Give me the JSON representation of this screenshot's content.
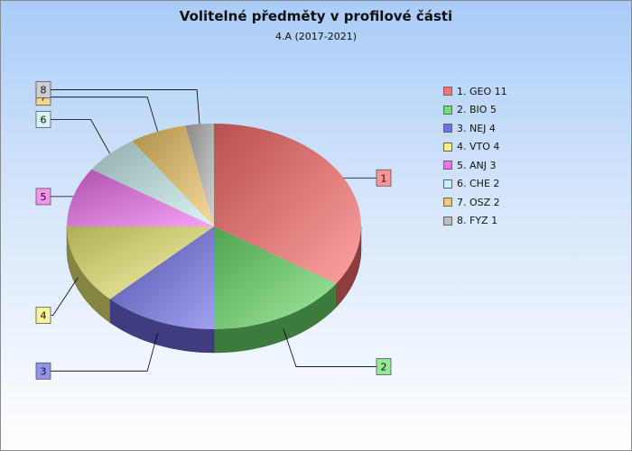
{
  "chart_data": {
    "type": "pie",
    "title": "Volitelné předměty v profilové části",
    "subtitle": "4.A (2017-2021)",
    "slices": [
      {
        "label": "1",
        "legend": "1. GEO 11",
        "value": 11,
        "color": "#ff6f6f"
      },
      {
        "label": "2",
        "legend": "2. BIO 5",
        "value": 5,
        "color": "#6fe06f"
      },
      {
        "label": "3",
        "legend": "3. NEJ 4",
        "value": 4,
        "color": "#6f6fe8"
      },
      {
        "label": "4",
        "legend": "4. VTO 4",
        "value": 4,
        "color": "#f2f27a"
      },
      {
        "label": "5",
        "legend": "5. ANJ 3",
        "value": 3,
        "color": "#f26ff2"
      },
      {
        "label": "6",
        "legend": "6. CHE 2",
        "value": 2,
        "color": "#c8f0ee"
      },
      {
        "label": "7",
        "legend": "7. OSZ 2",
        "value": 2,
        "color": "#f2c766"
      },
      {
        "label": "8",
        "legend": "8. FYZ 1",
        "value": 1,
        "color": "#bdbdbd"
      }
    ],
    "legend_position": "right"
  }
}
